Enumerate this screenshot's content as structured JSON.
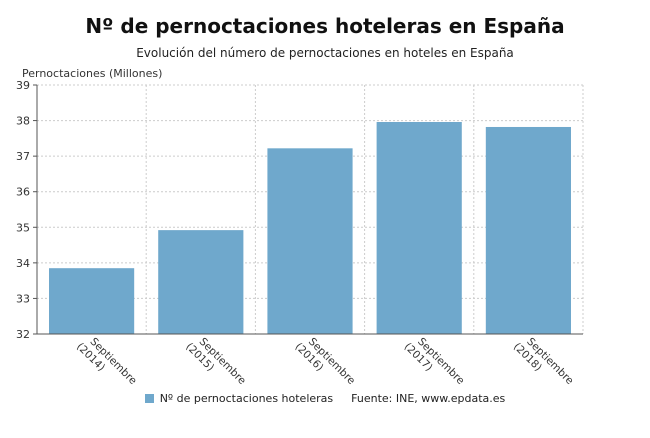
{
  "header": {
    "title": "Nº de pernoctaciones hoteleras en España",
    "subtitle": "Evolución del número de pernoctaciones en hoteles en España"
  },
  "legend": {
    "series_label": "Nº de pernoctaciones hoteleras",
    "source": "Fuente: INE, www.epdata.es"
  },
  "colors": {
    "bar": "#6fa8cc",
    "grid": "#cccccc",
    "axis": "#555555"
  },
  "chart_data": {
    "type": "bar",
    "title": "Nº de pernoctaciones hoteleras en España",
    "subtitle": "Evolución del número de pernoctaciones en hoteles en España",
    "ylabel": "Pernoctaciones (Millones)",
    "xlabel": "",
    "categories": [
      [
        "Septiembre",
        "(2014)"
      ],
      [
        "Septiembre",
        "(2015)"
      ],
      [
        "Septiembre",
        "(2016)"
      ],
      [
        "Septiembre",
        "(2017)"
      ],
      [
        "Septiembre",
        "(2018)"
      ]
    ],
    "series": [
      {
        "name": "Nº de pernoctaciones hoteleras",
        "values": [
          33.85,
          34.92,
          37.22,
          37.96,
          37.82
        ]
      }
    ],
    "ylim": [
      32,
      39
    ],
    "yticks": [
      32,
      33,
      34,
      35,
      36,
      37,
      38,
      39
    ],
    "grid": true,
    "legend_position": "bottom"
  }
}
